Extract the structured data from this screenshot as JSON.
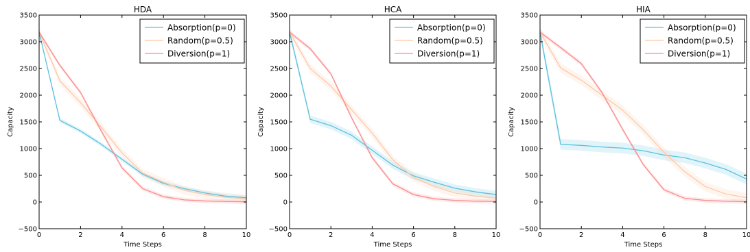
{
  "chart_data": [
    {
      "type": "line",
      "title": "HDA",
      "xlabel": "Time Steps",
      "ylabel": "Capacity",
      "xlim": [
        0,
        10
      ],
      "ylim": [
        -500,
        3500
      ],
      "xticks": [
        0,
        2,
        4,
        6,
        8,
        10
      ],
      "yticks": [
        -500,
        0,
        500,
        1000,
        1500,
        2000,
        2500,
        3000,
        3500
      ],
      "legend": "top-right",
      "grid": false,
      "x": [
        0,
        1,
        2,
        3,
        4,
        5,
        6,
        7,
        8,
        9,
        10
      ],
      "series": [
        {
          "name": "Absorption(p=0)",
          "color": "#5bc0de",
          "values": [
            3180,
            1530,
            1330,
            1080,
            800,
            520,
            350,
            250,
            170,
            110,
            80
          ],
          "band": 40
        },
        {
          "name": "Random(p=0.5)",
          "color": "#fdc8a8",
          "values": [
            3180,
            2270,
            1860,
            1400,
            920,
            540,
            370,
            220,
            140,
            90,
            60
          ],
          "band": 80
        },
        {
          "name": "Diversion(p=1)",
          "color": "#fa8a8a",
          "values": [
            3180,
            2560,
            2050,
            1330,
            640,
            250,
            100,
            40,
            20,
            10,
            5
          ],
          "band": 40
        }
      ]
    },
    {
      "type": "line",
      "title": "HCA",
      "xlabel": "Time Steps",
      "ylabel": "Capacity",
      "xlim": [
        0,
        10
      ],
      "ylim": [
        -500,
        3500
      ],
      "xticks": [
        0,
        2,
        4,
        6,
        8,
        10
      ],
      "yticks": [
        -500,
        0,
        500,
        1000,
        1500,
        2000,
        2500,
        3000,
        3500
      ],
      "legend": "top-right",
      "grid": false,
      "x": [
        0,
        1,
        2,
        3,
        4,
        5,
        6,
        7,
        8,
        9,
        10
      ],
      "series": [
        {
          "name": "Absorption(p=0)",
          "color": "#5bc0de",
          "values": [
            3180,
            1550,
            1430,
            1250,
            970,
            690,
            490,
            370,
            260,
            190,
            140
          ],
          "band": 70
        },
        {
          "name": "Random(p=0.5)",
          "color": "#fdc8a8",
          "values": [
            3180,
            2500,
            2170,
            1730,
            1290,
            790,
            460,
            290,
            170,
            110,
            70
          ],
          "band": 80
        },
        {
          "name": "Diversion(p=1)",
          "color": "#fa8a8a",
          "values": [
            3180,
            2870,
            2400,
            1580,
            830,
            340,
            140,
            60,
            30,
            15,
            10
          ],
          "band": 40
        }
      ]
    },
    {
      "type": "line",
      "title": "HIA",
      "xlabel": "Time Steps",
      "ylabel": "Capacity",
      "xlim": [
        0,
        10
      ],
      "ylim": [
        -500,
        3500
      ],
      "xticks": [
        0,
        2,
        4,
        6,
        8,
        10
      ],
      "yticks": [
        -500,
        0,
        500,
        1000,
        1500,
        2000,
        2500,
        3000,
        3500
      ],
      "legend": "top-right",
      "grid": false,
      "x": [
        0,
        1,
        2,
        3,
        4,
        5,
        6,
        7,
        8,
        9,
        10
      ],
      "series": [
        {
          "name": "Absorption(p=0)",
          "color": "#5bc0de",
          "values": [
            3180,
            1080,
            1060,
            1030,
            1010,
            960,
            880,
            830,
            730,
            610,
            430
          ],
          "band": 100
        },
        {
          "name": "Random(p=0.5)",
          "color": "#fdc8a8",
          "values": [
            3180,
            2510,
            2280,
            2000,
            1720,
            1350,
            930,
            570,
            290,
            150,
            80
          ],
          "band": 90
        },
        {
          "name": "Diversion(p=1)",
          "color": "#fa8a8a",
          "values": [
            3180,
            2890,
            2590,
            2050,
            1360,
            700,
            230,
            70,
            30,
            15,
            5
          ],
          "band": 40
        }
      ]
    }
  ]
}
